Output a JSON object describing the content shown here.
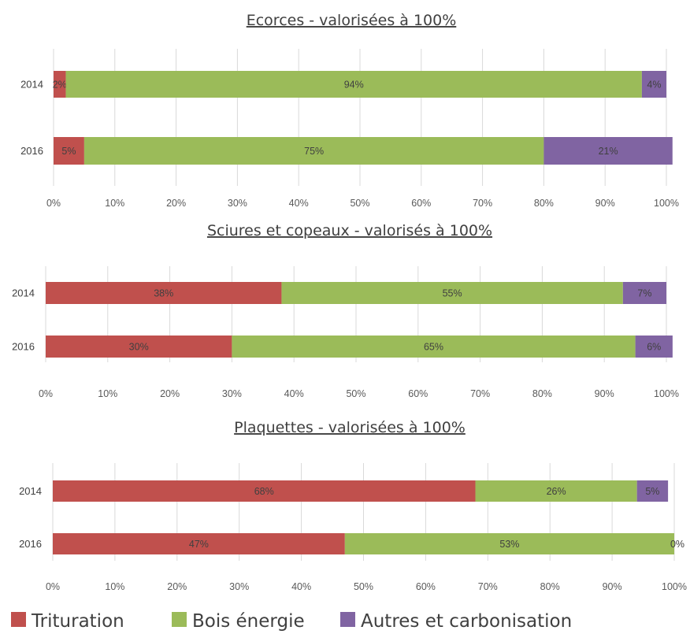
{
  "legend": [
    {
      "name": "Trituration",
      "color": "#c0504d"
    },
    {
      "name": "Bois énergie",
      "color": "#9bbb59"
    },
    {
      "name": "Autres et carbonisation",
      "color": "#8064a2"
    }
  ],
  "chart_data": [
    {
      "type": "bar",
      "orientation": "horizontal",
      "stacked": "percent",
      "title": "Ecorces - valorisées à 100%",
      "categories": [
        "2014",
        "2016"
      ],
      "series": [
        {
          "name": "Trituration",
          "values": [
            2,
            5
          ],
          "labels": [
            "2%",
            "5%"
          ]
        },
        {
          "name": "Bois énergie",
          "values": [
            94,
            75
          ],
          "labels": [
            "94%",
            "75%"
          ]
        },
        {
          "name": "Autres et carbonisation",
          "values": [
            4,
            21
          ],
          "labels": [
            "4%",
            "21%"
          ]
        }
      ],
      "xlim": [
        0,
        100
      ],
      "xticks": [
        "0%",
        "10%",
        "20%",
        "30%",
        "40%",
        "50%",
        "60%",
        "70%",
        "80%",
        "90%",
        "100%"
      ],
      "grid": true
    },
    {
      "type": "bar",
      "orientation": "horizontal",
      "stacked": "percent",
      "title": "Sciures et copeaux - valorisés à 100%",
      "categories": [
        "2014",
        "2016"
      ],
      "series": [
        {
          "name": "Trituration",
          "values": [
            38,
            30
          ],
          "labels": [
            "38%",
            "30%"
          ]
        },
        {
          "name": "Bois énergie",
          "values": [
            55,
            65
          ],
          "labels": [
            "55%",
            "65%"
          ]
        },
        {
          "name": "Autres et carbonisation",
          "values": [
            7,
            6
          ],
          "labels": [
            "7%",
            "6%"
          ]
        }
      ],
      "xlim": [
        0,
        100
      ],
      "xticks": [
        "0%",
        "10%",
        "20%",
        "30%",
        "40%",
        "50%",
        "60%",
        "70%",
        "80%",
        "90%",
        "100%"
      ],
      "grid": true
    },
    {
      "type": "bar",
      "orientation": "horizontal",
      "stacked": "percent",
      "title": "Plaquettes - valorisées à 100%",
      "categories": [
        "2014",
        "2016"
      ],
      "series": [
        {
          "name": "Trituration",
          "values": [
            68,
            47
          ],
          "labels": [
            "68%",
            "47%"
          ]
        },
        {
          "name": "Bois énergie",
          "values": [
            26,
            53
          ],
          "labels": [
            "26%",
            "53%"
          ]
        },
        {
          "name": "Autres et carbonisation",
          "values": [
            5,
            0
          ],
          "labels": [
            "5%",
            "0%"
          ]
        }
      ],
      "xlim": [
        0,
        100
      ],
      "xticks": [
        "0%",
        "10%",
        "20%",
        "30%",
        "40%",
        "50%",
        "60%",
        "70%",
        "80%",
        "90%",
        "100%"
      ],
      "grid": true
    }
  ]
}
